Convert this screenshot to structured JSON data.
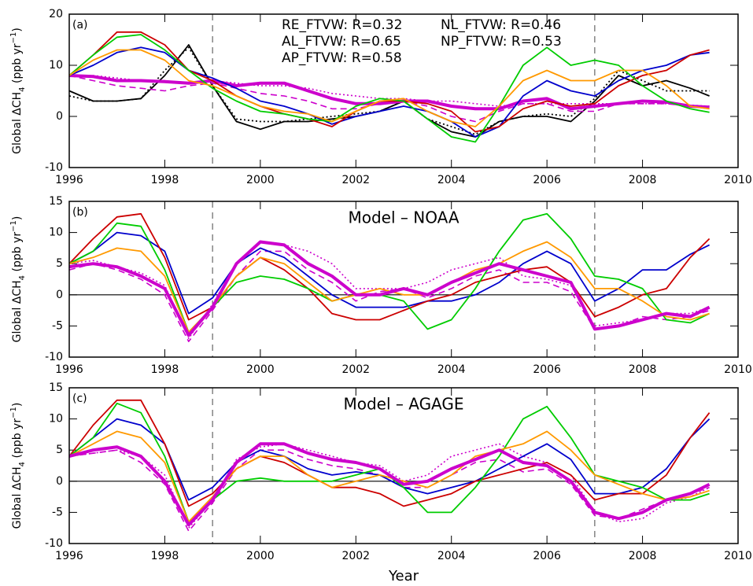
{
  "chart_data": [
    {
      "type": "line",
      "panel_label": "(a)",
      "ylabel": [
        "Global ΔCH",
        "4",
        " (ppb yr",
        "−1",
        ")"
      ],
      "x": [
        1996,
        1996.5,
        1997,
        1997.5,
        1998,
        1998.5,
        1999,
        1999.5,
        2000,
        2000.5,
        2001,
        2001.5,
        2002,
        2002.5,
        2003,
        2003.5,
        2004,
        2004.5,
        2005,
        2005.5,
        2006,
        2006.5,
        2007,
        2007.5,
        2008,
        2008.5,
        2009,
        2009.4
      ],
      "xlim": [
        1996,
        2010
      ],
      "xticks": [
        1996,
        1998,
        2000,
        2002,
        2004,
        2006,
        2008,
        2010
      ],
      "ylim": [
        -10,
        20
      ],
      "yticks": [
        -10,
        0,
        10,
        20
      ],
      "vlines": [
        1999,
        2007
      ],
      "series": [
        {
          "color": "#000000",
          "style": "solid",
          "width": 1.8,
          "values": [
            5,
            3,
            3,
            3.5,
            8,
            14,
            6,
            -1,
            -2.5,
            -1,
            -1,
            -0.5,
            0,
            1,
            3,
            -0.5,
            -3,
            -4,
            -1,
            0,
            0,
            -1,
            3,
            8,
            6,
            7,
            5.5,
            4
          ]
        },
        {
          "color": "#000000",
          "style": "dotted",
          "width": 1.8,
          "values": [
            4,
            3,
            3,
            3.5,
            9,
            13.5,
            6,
            -0.5,
            -1,
            -1,
            -0.5,
            0,
            0.5,
            1,
            3,
            -0.5,
            -2,
            -3.5,
            -1,
            0,
            0.5,
            0,
            3.5,
            9,
            7,
            5,
            5,
            5
          ]
        },
        {
          "color": "#cc00cc",
          "style": "dashed",
          "width": 1.6,
          "values": [
            8,
            7,
            6,
            5.5,
            5,
            6,
            6.5,
            5.5,
            4.5,
            4,
            3,
            1.5,
            1.5,
            2.5,
            3,
            2,
            0,
            -1,
            1,
            2.5,
            2.5,
            1,
            1,
            2.5,
            2.5,
            2.5,
            2,
            1.5
          ]
        },
        {
          "color": "#cc00cc",
          "style": "dotted",
          "width": 1.6,
          "values": [
            8,
            8,
            7.5,
            7,
            7,
            6.5,
            7,
            6.5,
            6,
            6,
            5.5,
            4.5,
            4,
            3.5,
            3.5,
            3,
            3,
            2.5,
            2,
            2.5,
            2.5,
            2.5,
            2.5,
            2.5,
            2.5,
            2.5,
            2.2,
            2
          ]
        },
        {
          "name": "RE_FTVW: R=0.32",
          "color": "#cc00cc",
          "style": "solid",
          "width": 4,
          "values": [
            8,
            7.8,
            7,
            7,
            6.8,
            6.5,
            7,
            6,
            6.5,
            6.5,
            5,
            3.5,
            2.5,
            2.5,
            3,
            3,
            2,
            1.5,
            1.5,
            3,
            3.5,
            1.5,
            2,
            2.5,
            3,
            2.8,
            2,
            1.8
          ]
        },
        {
          "name": "AL_FTVW: R=0.65",
          "color": "#0000cc",
          "style": "solid",
          "width": 1.8,
          "values": [
            8,
            10,
            12.5,
            13.5,
            12.5,
            9,
            7.5,
            5.5,
            3,
            2,
            0.5,
            -1.5,
            0,
            1,
            2,
            1,
            -1,
            -4,
            -2,
            4,
            7,
            5,
            4,
            7,
            9,
            10,
            12,
            12.5
          ]
        },
        {
          "name": "AP_FTVW: R=0.58",
          "color": "#cc0000",
          "style": "solid",
          "width": 1.8,
          "values": [
            8,
            12,
            16.5,
            16.5,
            14,
            9,
            7,
            4,
            2,
            0.5,
            -0.5,
            -2,
            1,
            3,
            3,
            2.5,
            1,
            -3,
            -2,
            1.5,
            3,
            2,
            2.5,
            6,
            8,
            9,
            12,
            13
          ]
        },
        {
          "name": "NL_FTVW: R=0.46",
          "color": "#00cc00",
          "style": "solid",
          "width": 1.8,
          "values": [
            8,
            12,
            15.5,
            16,
            13,
            9,
            5.5,
            3,
            1,
            0.5,
            -0.5,
            -1,
            2,
            3.5,
            3,
            -0.5,
            -4,
            -5,
            2,
            10,
            13.5,
            10,
            11,
            10,
            6,
            3,
            1.5,
            0.8
          ]
        },
        {
          "name": "NP_FTVW: R=0.53",
          "color": "#ff9900",
          "style": "solid",
          "width": 1.8,
          "values": [
            8,
            11,
            13,
            13,
            11,
            7,
            6,
            4,
            2,
            1,
            0.5,
            -1,
            1,
            3,
            3.5,
            1,
            -1,
            -2,
            2,
            7,
            9,
            7,
            7,
            9,
            9,
            6,
            2,
            1.5
          ]
        }
      ]
    },
    {
      "type": "line",
      "panel_label": "(b)",
      "title": "Model – NOAA",
      "ylabel": [
        "Global ΔCH",
        "4",
        " (ppb yr",
        "−1",
        ")"
      ],
      "x": [
        1996,
        1996.5,
        1997,
        1997.5,
        1998,
        1998.5,
        1999,
        1999.5,
        2000,
        2000.5,
        2001,
        2001.5,
        2002,
        2002.5,
        2003,
        2003.5,
        2004,
        2004.5,
        2005,
        2005.5,
        2006,
        2006.5,
        2007,
        2007.5,
        2008,
        2008.5,
        2009,
        2009.4
      ],
      "xlim": [
        1996,
        2010
      ],
      "xticks": [
        1996,
        1998,
        2000,
        2002,
        2004,
        2006,
        2008,
        2010
      ],
      "ylim": [
        -10,
        15
      ],
      "yticks": [
        -10,
        -5,
        0,
        5,
        10,
        15
      ],
      "vlines": [
        1999,
        2007
      ],
      "hline": 0,
      "series": [
        {
          "color": "#cc00cc",
          "style": "dashed",
          "width": 1.6,
          "values": [
            4,
            5,
            4,
            2.5,
            0,
            -7.5,
            -2.5,
            3,
            7,
            7,
            4,
            2,
            -1,
            0.5,
            1,
            -0.5,
            1,
            3,
            4,
            2,
            2,
            0.5,
            -5.5,
            -5,
            -3.5,
            -4,
            -3.5,
            -2.5
          ]
        },
        {
          "color": "#cc00cc",
          "style": "dotted",
          "width": 1.6,
          "values": [
            5,
            5.5,
            4.5,
            3.5,
            1.5,
            -7,
            -1.5,
            5,
            8.5,
            8,
            7,
            5,
            1,
            1,
            1,
            2,
            4,
            5,
            6,
            3,
            2.5,
            1.5,
            -5,
            -4.5,
            -4,
            -3,
            -3,
            -2
          ]
        },
        {
          "color": "#0000cc",
          "style": "solid",
          "width": 1.8,
          "values": [
            5,
            7,
            10,
            9.5,
            7,
            -3,
            -0.5,
            5,
            7.5,
            6,
            3,
            0,
            -2,
            -2,
            -2,
            -1,
            -1,
            0,
            2,
            5,
            7,
            5,
            -1,
            1,
            4,
            4,
            6.5,
            8
          ]
        },
        {
          "color": "#cc0000",
          "style": "solid",
          "width": 1.8,
          "values": [
            5,
            9,
            12.5,
            13,
            6,
            -4,
            -2,
            3,
            6,
            4,
            1,
            -3,
            -4,
            -4,
            -2.5,
            -1,
            0,
            2,
            3,
            4,
            4.5,
            2,
            -3.5,
            -2,
            0,
            1,
            6,
            9
          ]
        },
        {
          "color": "#00cc00",
          "style": "solid",
          "width": 1.8,
          "values": [
            5,
            7,
            11.5,
            11,
            4,
            -6,
            -2,
            2,
            3,
            2.5,
            1,
            -1,
            0,
            0,
            -1,
            -5.5,
            -4,
            1,
            7,
            12,
            13,
            9,
            3,
            2.5,
            1,
            -4,
            -4.5,
            -3
          ]
        },
        {
          "color": "#ff9900",
          "style": "solid",
          "width": 1.8,
          "values": [
            5,
            6,
            7.5,
            7,
            3,
            -6,
            -2,
            3,
            6,
            5,
            2,
            -1,
            0,
            1,
            0,
            0,
            2,
            4,
            5,
            7,
            8.5,
            6,
            1,
            1,
            -1,
            -3.5,
            -4,
            -3
          ]
        },
        {
          "color": "#cc00cc",
          "style": "solid",
          "width": 4,
          "values": [
            4.5,
            5,
            4.5,
            3,
            1,
            -6.5,
            -2,
            5,
            8.5,
            8,
            5,
            3,
            0,
            0,
            1,
            0,
            2,
            3.5,
            5,
            4,
            3,
            2,
            -5.5,
            -5,
            -4,
            -3,
            -3.5,
            -2
          ]
        }
      ]
    },
    {
      "type": "line",
      "panel_label": "(c)",
      "title": "Model – AGAGE",
      "xlabel": "Year",
      "ylabel": [
        "Global ΔCH",
        "4",
        " (ppb yr",
        "−1",
        ")"
      ],
      "x": [
        1996,
        1996.5,
        1997,
        1997.5,
        1998,
        1998.5,
        1999,
        1999.5,
        2000,
        2000.5,
        2001,
        2001.5,
        2002,
        2002.5,
        2003,
        2003.5,
        2004,
        2004.5,
        2005,
        2005.5,
        2006,
        2006.5,
        2007,
        2007.5,
        2008,
        2008.5,
        2009,
        2009.4
      ],
      "xlim": [
        1996,
        2010
      ],
      "xticks": [
        1996,
        1998,
        2000,
        2002,
        2004,
        2006,
        2008,
        2010
      ],
      "ylim": [
        -10,
        15
      ],
      "yticks": [
        -10,
        -5,
        0,
        5,
        10,
        15
      ],
      "vlines": [
        1999,
        2007
      ],
      "hline": 0,
      "series": [
        {
          "color": "#cc00cc",
          "style": "dashed",
          "width": 1.6,
          "values": [
            4,
            4.5,
            5,
            3,
            -0.5,
            -8,
            -3.5,
            2,
            5,
            5,
            3.5,
            2.5,
            2,
            1,
            -1,
            -1,
            1,
            3,
            3.5,
            1.5,
            2,
            -0.5,
            -5.5,
            -6,
            -4.5,
            -3,
            -2,
            -1
          ]
        },
        {
          "color": "#cc00cc",
          "style": "dotted",
          "width": 1.6,
          "values": [
            4,
            4.5,
            5,
            4,
            1,
            -7.5,
            -3,
            3.5,
            5.5,
            6,
            5,
            4,
            3,
            2.5,
            0,
            1,
            4,
            5,
            6,
            4,
            3,
            1,
            -5,
            -6.5,
            -6,
            -3.5,
            -2.5,
            -1
          ]
        },
        {
          "color": "#0000cc",
          "style": "solid",
          "width": 1.8,
          "values": [
            4,
            7,
            10,
            9,
            6,
            -3,
            -1,
            3,
            5,
            4,
            2,
            1,
            1.5,
            1,
            -1,
            -2,
            -1,
            0,
            2,
            4,
            6,
            3.5,
            -2,
            -2,
            -1,
            2,
            7,
            10
          ]
        },
        {
          "color": "#cc0000",
          "style": "solid",
          "width": 1.8,
          "values": [
            4,
            9,
            13,
            13,
            6,
            -4,
            -2,
            2,
            4,
            3,
            1,
            -1,
            -1,
            -2,
            -4,
            -3,
            -2,
            0,
            1,
            2,
            3,
            1,
            -3,
            -2,
            -2,
            1,
            7,
            11
          ]
        },
        {
          "color": "#00cc00",
          "style": "solid",
          "width": 1.8,
          "values": [
            4,
            7,
            12.5,
            11,
            4,
            -6.5,
            -3,
            0,
            0.5,
            0,
            0,
            0,
            1,
            2,
            -1,
            -5,
            -5,
            -1,
            4,
            10,
            12,
            7,
            1,
            0,
            -1,
            -3,
            -3,
            -2
          ]
        },
        {
          "color": "#ff9900",
          "style": "solid",
          "width": 1.8,
          "values": [
            4,
            6,
            8,
            7,
            3,
            -6.5,
            -2.5,
            2,
            4,
            4,
            1,
            -1,
            0,
            1,
            0,
            -1,
            1,
            4,
            5,
            6,
            8,
            5,
            1,
            -0.5,
            -2,
            -3,
            -2.5,
            -1.5
          ]
        },
        {
          "color": "#cc00cc",
          "style": "solid",
          "width": 4,
          "values": [
            4,
            5,
            5.5,
            4,
            0,
            -7,
            -3,
            3,
            6,
            6,
            4.5,
            3.5,
            3,
            2,
            -0.5,
            0,
            2,
            3.5,
            5,
            3,
            2.5,
            0,
            -5,
            -6,
            -5,
            -3,
            -2,
            -0.5
          ]
        }
      ]
    }
  ]
}
